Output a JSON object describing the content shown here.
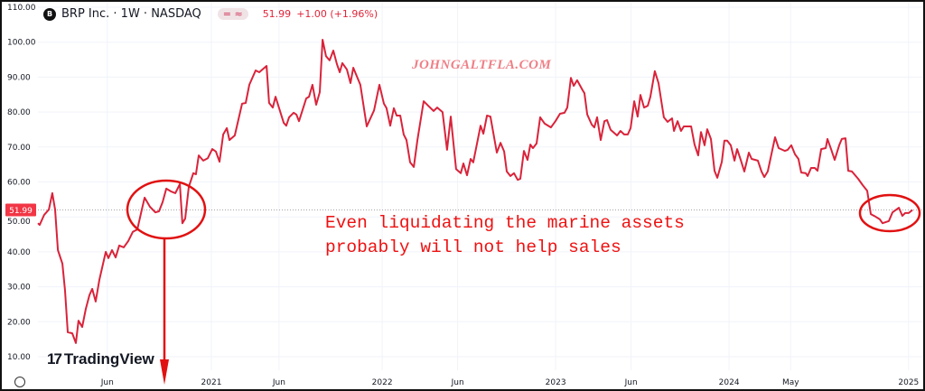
{
  "header": {
    "logo_text": "B",
    "symbol": "BRP Inc. · 1W · NASDAQ",
    "indicator": "= ≈",
    "price": "51.99",
    "change": "+1.00 (+1.96%)"
  },
  "watermark": "JOHNGALTFLA.COM",
  "brand": "TradingView",
  "brand_mark": "17",
  "annotation": {
    "line1": "Even liquidating the marine assets",
    "line2": "probably will not help sales"
  },
  "colors": {
    "line": "#d9233a",
    "annotation": "#e11111",
    "price_tag": "#f23645"
  },
  "chart_data": {
    "type": "line",
    "title": "BRP Inc. · 1W · NASDAQ",
    "ylim": [
      10,
      110
    ],
    "xlim": [
      2020.0,
      5025.0
    ],
    "yticks": [
      "110.00",
      "100.00",
      "90.00",
      "80.00",
      "70.00",
      "60.00",
      "50.00",
      "40.00",
      "30.00",
      "20.00",
      "10.00"
    ],
    "xticks": [
      {
        "label": "Jun",
        "x": 2020.4
      },
      {
        "label": "2021",
        "x": 2021.0
      },
      {
        "label": "Jun",
        "x": 2021.39
      },
      {
        "label": "2022",
        "x": 2021.985
      },
      {
        "label": "Jun",
        "x": 2022.42
      },
      {
        "label": "2023",
        "x": 2022.985
      },
      {
        "label": "Jun",
        "x": 2023.42
      },
      {
        "label": "2024",
        "x": 2023.985
      },
      {
        "label": "May",
        "x": 2024.34
      },
      {
        "label": "2025",
        "x": 2025.02
      }
    ],
    "last_price_label": "51.99",
    "last_price": 51.99,
    "x": [
      2020.0,
      2020.01,
      2020.036,
      2020.063,
      2020.083,
      2020.099,
      2020.115,
      2020.141,
      2020.156,
      2020.172,
      2020.198,
      2020.219,
      2020.234,
      2020.255,
      2020.276,
      2020.297,
      2020.313,
      2020.333,
      2020.354,
      2020.391,
      2020.406,
      2020.427,
      2020.448,
      2020.469,
      2020.495,
      2020.521,
      2020.547,
      2020.573,
      2020.599,
      2020.615,
      2020.646,
      2020.677,
      2020.698,
      2020.719,
      2020.74,
      2020.766,
      2020.792,
      2020.818,
      2020.833,
      2020.849,
      2020.87,
      2020.896,
      2020.911,
      2020.927,
      2020.953,
      2020.979,
      2021.005,
      2021.026,
      2021.047,
      2021.068,
      2021.089,
      2021.104,
      2021.135,
      2021.177,
      2021.198,
      2021.219,
      2021.255,
      2021.276,
      2021.318,
      2021.333,
      2021.354,
      2021.37,
      2021.417,
      2021.432,
      2021.448,
      2021.474,
      2021.49,
      2021.505,
      2021.547,
      2021.563,
      2021.583,
      2021.604,
      2021.625,
      2021.641,
      2021.661,
      2021.682,
      2021.703,
      2021.724,
      2021.74,
      2021.755,
      2021.781,
      2021.802,
      2021.818,
      2021.859,
      2021.896,
      2021.938,
      2021.969,
      2021.995,
      2022.01,
      2022.031,
      2022.052,
      2022.068,
      2022.089,
      2022.109,
      2022.125,
      2022.146,
      2022.167,
      2022.188,
      2022.224,
      2022.25,
      2022.281,
      2022.302,
      2022.333,
      2022.359,
      2022.38,
      2022.411,
      2022.438,
      2022.453,
      2022.474,
      2022.495,
      2022.51,
      2022.552,
      2022.568,
      2022.589,
      2022.609,
      2022.646,
      2022.667,
      2022.688,
      2022.703,
      2022.724,
      2022.745,
      2022.766,
      2022.781,
      2022.802,
      2022.823,
      2022.839,
      2022.854,
      2022.875,
      2022.896,
      2022.922,
      2022.958,
      2022.984,
      2023.01,
      2023.036,
      2023.052,
      2023.073,
      2023.089,
      2023.109,
      2023.141,
      2023.151,
      2023.167,
      2023.193,
      2023.208,
      2023.224,
      2023.245,
      2023.266,
      2023.281,
      2023.302,
      2023.339,
      2023.359,
      2023.38,
      2023.401,
      2023.417,
      2023.438,
      2023.458,
      2023.474,
      2023.495,
      2023.516,
      2023.531,
      2023.557,
      2023.578,
      2023.609,
      2023.63,
      2023.656,
      2023.667,
      2023.688,
      2023.708,
      2023.724,
      2023.766,
      2023.786,
      2023.807,
      2023.823,
      2023.844,
      2023.859,
      2023.88,
      2023.901,
      2023.917,
      2023.943,
      2023.958,
      2023.974,
      2023.995,
      2024.016,
      2024.031,
      2024.052,
      2024.073,
      2024.099,
      2024.115,
      2024.151,
      2024.172,
      2024.188,
      2024.208,
      2024.25,
      2024.271,
      2024.307,
      2024.323,
      2024.344,
      2024.365,
      2024.385,
      2024.401,
      2024.427,
      2024.438,
      2024.458,
      2024.479,
      2024.495,
      2024.516,
      2024.542,
      2024.552,
      2024.573,
      2024.594,
      2024.62,
      2024.635,
      2024.656,
      2024.672,
      2024.693,
      2024.729,
      2024.755,
      2024.781,
      2024.802,
      2024.828,
      2024.854,
      2024.87,
      2024.906,
      2024.927,
      2024.964,
      2024.984,
      2025.0,
      2025.021,
      2025.042
    ],
    "y": [
      48.2,
      47.7,
      50.6,
      52.1,
      56.8,
      52.1,
      40.5,
      36.6,
      28.9,
      17.0,
      16.7,
      13.9,
      20.3,
      18.5,
      23.7,
      27.6,
      29.4,
      25.8,
      32.0,
      40.0,
      38.2,
      40.5,
      38.4,
      41.8,
      41.3,
      43.1,
      45.7,
      46.4,
      52.1,
      55.5,
      52.9,
      51.3,
      51.6,
      54.2,
      58.1,
      57.3,
      56.8,
      59.4,
      48.2,
      49.5,
      58.6,
      62.5,
      62.2,
      67.6,
      66.1,
      66.8,
      69.4,
      68.7,
      65.8,
      73.6,
      75.4,
      72.0,
      73.3,
      82.4,
      82.6,
      87.8,
      91.9,
      91.4,
      93.2,
      82.6,
      81.3,
      84.4,
      76.9,
      76.1,
      78.5,
      79.8,
      79.3,
      77.4,
      83.9,
      84.4,
      87.8,
      82.1,
      85.7,
      100.7,
      96.0,
      94.8,
      97.6,
      93.7,
      91.4,
      94.0,
      92.2,
      88.3,
      92.7,
      87.8,
      75.9,
      80.5,
      87.8,
      82.4,
      81.1,
      76.1,
      81.1,
      79.0,
      79.0,
      73.6,
      72.0,
      65.6,
      64.3,
      72.0,
      83.1,
      81.8,
      80.3,
      81.3,
      80.0,
      69.2,
      78.7,
      63.7,
      62.5,
      65.3,
      61.9,
      66.6,
      65.6,
      76.1,
      73.8,
      79.0,
      78.7,
      68.4,
      71.2,
      68.7,
      63.0,
      61.7,
      62.5,
      60.6,
      60.9,
      68.9,
      66.3,
      70.7,
      69.7,
      71.0,
      78.5,
      76.7,
      75.6,
      77.4,
      79.5,
      79.8,
      81.3,
      89.8,
      87.5,
      89.1,
      86.2,
      85.4,
      79.3,
      76.4,
      75.6,
      78.5,
      72.0,
      77.4,
      77.7,
      74.9,
      73.3,
      74.6,
      73.6,
      73.6,
      75.4,
      83.1,
      78.7,
      84.9,
      81.3,
      81.8,
      84.4,
      91.7,
      88.3,
      78.5,
      77.2,
      78.2,
      74.6,
      77.4,
      74.6,
      75.9,
      75.9,
      70.7,
      67.6,
      74.3,
      70.5,
      75.1,
      72.3,
      63.2,
      61.2,
      65.8,
      71.8,
      71.8,
      70.5,
      66.1,
      69.4,
      66.3,
      63.0,
      68.4,
      66.6,
      66.1,
      63.0,
      61.4,
      63.0,
      72.8,
      69.7,
      68.9,
      69.2,
      70.5,
      67.9,
      66.6,
      62.7,
      62.5,
      61.7,
      64.0,
      64.0,
      63.2,
      69.4,
      69.7,
      72.3,
      69.4,
      66.3,
      70.5,
      72.3,
      72.5,
      63.2,
      63.0,
      60.9,
      59.1,
      57.5,
      50.8,
      50.1,
      49.3,
      48.2,
      48.8,
      51.3,
      52.6,
      50.3,
      51.1,
      51.1,
      51.99
    ]
  }
}
